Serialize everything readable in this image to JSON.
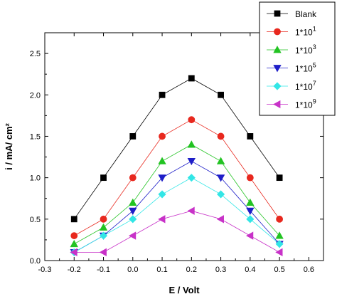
{
  "chart_data": {
    "type": "line",
    "xlabel": "E / Volt",
    "ylabel": "i / mA/ cm²",
    "xlim": [
      -0.3,
      0.65
    ],
    "ylim": [
      0.0,
      2.75
    ],
    "x_ticks": [
      "-0.3",
      "-0.2",
      "-0.1",
      "0.0",
      "0.1",
      "0.2",
      "0.3",
      "0.4",
      "0.5",
      "0.6"
    ],
    "x_tick_values": [
      -0.3,
      -0.2,
      -0.1,
      0.0,
      0.1,
      0.2,
      0.3,
      0.4,
      0.5,
      0.6
    ],
    "y_ticks": [
      "0.0",
      "0.5",
      "1.0",
      "1.5",
      "2.0",
      "2.5"
    ],
    "y_tick_values": [
      0.0,
      0.5,
      1.0,
      1.5,
      2.0,
      2.5
    ],
    "x": [
      -0.2,
      -0.1,
      0.0,
      0.1,
      0.2,
      0.3,
      0.4,
      0.5
    ],
    "legend_position": "top-right",
    "series": [
      {
        "name": "Blank",
        "base": "Blank",
        "sup": "",
        "color": "#000000",
        "marker": "square",
        "values": [
          0.5,
          1.0,
          1.5,
          2.0,
          2.2,
          2.0,
          1.5,
          1.0
        ]
      },
      {
        "name": "1*10^1",
        "base": "1*10",
        "sup": "1",
        "color": "#e8281e",
        "marker": "circle",
        "values": [
          0.3,
          0.5,
          1.0,
          1.5,
          1.7,
          1.5,
          1.0,
          0.5
        ]
      },
      {
        "name": "1*10^3",
        "base": "1*10",
        "sup": "3",
        "color": "#22c322",
        "marker": "triangle-up",
        "values": [
          0.2,
          0.4,
          0.7,
          1.2,
          1.4,
          1.2,
          0.7,
          0.3
        ]
      },
      {
        "name": "1*10^5",
        "base": "1*10",
        "sup": "5",
        "color": "#1e1ec8",
        "marker": "triangle-down",
        "values": [
          0.1,
          0.3,
          0.6,
          1.0,
          1.2,
          1.0,
          0.6,
          0.2
        ]
      },
      {
        "name": "1*10^7",
        "base": "1*10",
        "sup": "7",
        "color": "#32e6e6",
        "marker": "diamond",
        "values": [
          0.1,
          0.3,
          0.5,
          0.8,
          1.0,
          0.8,
          0.5,
          0.2
        ]
      },
      {
        "name": "1*10^9",
        "base": "1*10",
        "sup": "9",
        "color": "#c832c8",
        "marker": "triangle-left",
        "values": [
          0.1,
          0.1,
          0.3,
          0.5,
          0.6,
          0.5,
          0.3,
          0.1
        ]
      }
    ]
  }
}
